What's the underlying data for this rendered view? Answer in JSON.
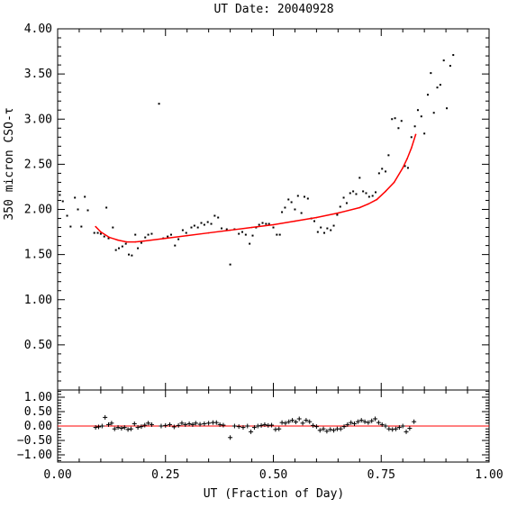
{
  "chart_data": [
    {
      "type": "scatter",
      "title": "UT Date: 20040928",
      "xlabel": "",
      "ylabel": "350 micron CSO-τ",
      "xlim": [
        0,
        1
      ],
      "ylim": [
        0,
        4
      ],
      "x_ticks": [
        "0.00",
        "0.25",
        "0.50",
        "0.75",
        "1.00"
      ],
      "y_ticks": [
        "0.50",
        "1.00",
        "1.50",
        "2.00",
        "2.50",
        "3.00",
        "3.50",
        "4.00"
      ],
      "series": [
        {
          "marker": "dot",
          "color": "#000000",
          "points": [
            [
              0.005,
              2.16
            ],
            [
              0.012,
              2.09
            ],
            [
              0.022,
              1.93
            ],
            [
              0.03,
              1.81
            ],
            [
              0.04,
              2.13
            ],
            [
              0.047,
              2.0
            ],
            [
              0.055,
              1.81
            ],
            [
              0.063,
              2.14
            ],
            [
              0.07,
              1.99
            ],
            [
              0.085,
              1.74
            ],
            [
              0.093,
              1.74
            ],
            [
              0.1,
              1.73
            ],
            [
              0.108,
              1.7
            ],
            [
              0.113,
              2.02
            ],
            [
              0.118,
              1.68
            ],
            [
              0.128,
              1.8
            ],
            [
              0.135,
              1.55
            ],
            [
              0.142,
              1.57
            ],
            [
              0.15,
              1.59
            ],
            [
              0.158,
              1.62
            ],
            [
              0.165,
              1.5
            ],
            [
              0.172,
              1.49
            ],
            [
              0.18,
              1.72
            ],
            [
              0.186,
              1.57
            ],
            [
              0.194,
              1.63
            ],
            [
              0.203,
              1.69
            ],
            [
              0.21,
              1.72
            ],
            [
              0.218,
              1.73
            ],
            [
              0.235,
              3.17
            ],
            [
              0.245,
              1.68
            ],
            [
              0.255,
              1.7
            ],
            [
              0.263,
              1.72
            ],
            [
              0.272,
              1.6
            ],
            [
              0.28,
              1.67
            ],
            [
              0.29,
              1.77
            ],
            [
              0.298,
              1.74
            ],
            [
              0.31,
              1.8
            ],
            [
              0.317,
              1.82
            ],
            [
              0.325,
              1.8
            ],
            [
              0.333,
              1.85
            ],
            [
              0.34,
              1.83
            ],
            [
              0.348,
              1.86
            ],
            [
              0.356,
              1.84
            ],
            [
              0.364,
              1.93
            ],
            [
              0.372,
              1.91
            ],
            [
              0.38,
              1.79
            ],
            [
              0.392,
              1.78
            ],
            [
              0.4,
              1.39
            ],
            [
              0.41,
              1.78
            ],
            [
              0.42,
              1.73
            ],
            [
              0.428,
              1.75
            ],
            [
              0.436,
              1.72
            ],
            [
              0.445,
              1.62
            ],
            [
              0.452,
              1.71
            ],
            [
              0.46,
              1.8
            ],
            [
              0.467,
              1.83
            ],
            [
              0.475,
              1.85
            ],
            [
              0.483,
              1.84
            ],
            [
              0.49,
              1.84
            ],
            [
              0.5,
              1.8
            ],
            [
              0.508,
              1.72
            ],
            [
              0.515,
              1.72
            ],
            [
              0.52,
              1.97
            ],
            [
              0.527,
              2.02
            ],
            [
              0.535,
              2.11
            ],
            [
              0.542,
              2.08
            ],
            [
              0.55,
              2.0
            ],
            [
              0.557,
              2.15
            ],
            [
              0.565,
              1.96
            ],
            [
              0.572,
              2.14
            ],
            [
              0.58,
              2.12
            ],
            [
              0.588,
              1.9
            ],
            [
              0.595,
              1.87
            ],
            [
              0.603,
              1.75
            ],
            [
              0.61,
              1.8
            ],
            [
              0.618,
              1.74
            ],
            [
              0.625,
              1.79
            ],
            [
              0.633,
              1.77
            ],
            [
              0.64,
              1.82
            ],
            [
              0.648,
              1.94
            ],
            [
              0.655,
              2.03
            ],
            [
              0.663,
              2.13
            ],
            [
              0.67,
              2.07
            ],
            [
              0.678,
              2.18
            ],
            [
              0.685,
              2.2
            ],
            [
              0.692,
              2.17
            ],
            [
              0.7,
              2.35
            ],
            [
              0.708,
              2.2
            ],
            [
              0.715,
              2.18
            ],
            [
              0.722,
              2.14
            ],
            [
              0.73,
              2.15
            ],
            [
              0.737,
              2.19
            ],
            [
              0.745,
              2.4
            ],
            [
              0.752,
              2.45
            ],
            [
              0.76,
              2.42
            ],
            [
              0.767,
              2.6
            ],
            [
              0.775,
              3.0
            ],
            [
              0.782,
              3.01
            ],
            [
              0.79,
              2.9
            ],
            [
              0.797,
              2.98
            ],
            [
              0.805,
              2.48
            ],
            [
              0.812,
              2.46
            ],
            [
              0.82,
              2.8
            ],
            [
              0.828,
              2.92
            ],
            [
              0.835,
              3.1
            ],
            [
              0.843,
              3.03
            ],
            [
              0.85,
              2.84
            ],
            [
              0.858,
              3.27
            ],
            [
              0.865,
              3.51
            ],
            [
              0.872,
              3.07
            ],
            [
              0.88,
              3.35
            ],
            [
              0.887,
              3.38
            ],
            [
              0.895,
              3.65
            ],
            [
              0.902,
              3.12
            ],
            [
              0.91,
              3.59
            ],
            [
              0.917,
              3.71
            ]
          ]
        },
        {
          "marker": "line",
          "color": "#ff0000",
          "x": [
            0.088,
            0.1,
            0.12,
            0.14,
            0.16,
            0.18,
            0.2,
            0.25,
            0.3,
            0.35,
            0.4,
            0.45,
            0.5,
            0.55,
            0.6,
            0.65,
            0.7,
            0.72,
            0.74,
            0.76,
            0.78,
            0.8,
            0.81,
            0.82,
            0.83
          ],
          "y": [
            1.81,
            1.75,
            1.69,
            1.66,
            1.64,
            1.64,
            1.65,
            1.68,
            1.71,
            1.74,
            1.77,
            1.8,
            1.83,
            1.87,
            1.91,
            1.96,
            2.02,
            2.06,
            2.11,
            2.2,
            2.3,
            2.46,
            2.56,
            2.68,
            2.83
          ]
        }
      ]
    },
    {
      "type": "scatter",
      "xlabel": "UT (Fraction of Day)",
      "ylabel": "",
      "xlim": [
        0,
        1
      ],
      "ylim": [
        -1.25,
        1.25
      ],
      "x_ticks": [
        "0.00",
        "0.25",
        "0.50",
        "0.75",
        "1.00"
      ],
      "y_ticks": [
        "1.00",
        "0.50",
        "0.00",
        "−0.50",
        "−1.00"
      ],
      "zero_line_color": "#ff0000",
      "series": [
        {
          "marker": "plus",
          "color": "#000000",
          "points": [
            [
              0.088,
              -0.05
            ],
            [
              0.095,
              -0.03
            ],
            [
              0.103,
              0.0
            ],
            [
              0.11,
              0.3
            ],
            [
              0.118,
              0.05
            ],
            [
              0.125,
              0.1
            ],
            [
              0.132,
              -0.1
            ],
            [
              0.14,
              -0.05
            ],
            [
              0.148,
              -0.08
            ],
            [
              0.155,
              -0.05
            ],
            [
              0.163,
              -0.12
            ],
            [
              0.17,
              -0.1
            ],
            [
              0.178,
              0.08
            ],
            [
              0.186,
              -0.05
            ],
            [
              0.194,
              -0.02
            ],
            [
              0.202,
              0.03
            ],
            [
              0.21,
              0.1
            ],
            [
              0.218,
              0.05
            ],
            [
              0.24,
              0.0
            ],
            [
              0.25,
              0.02
            ],
            [
              0.26,
              0.05
            ],
            [
              0.27,
              -0.03
            ],
            [
              0.28,
              0.02
            ],
            [
              0.288,
              0.1
            ],
            [
              0.296,
              0.05
            ],
            [
              0.305,
              0.08
            ],
            [
              0.313,
              0.05
            ],
            [
              0.32,
              0.1
            ],
            [
              0.33,
              0.06
            ],
            [
              0.34,
              0.08
            ],
            [
              0.35,
              0.1
            ],
            [
              0.36,
              0.12
            ],
            [
              0.368,
              0.12
            ],
            [
              0.376,
              0.05
            ],
            [
              0.384,
              0.03
            ],
            [
              0.4,
              -0.4
            ],
            [
              0.41,
              0.0
            ],
            [
              0.42,
              -0.02
            ],
            [
              0.43,
              -0.05
            ],
            [
              0.44,
              0.0
            ],
            [
              0.448,
              -0.2
            ],
            [
              0.456,
              -0.05
            ],
            [
              0.464,
              0.0
            ],
            [
              0.472,
              0.02
            ],
            [
              0.48,
              0.05
            ],
            [
              0.488,
              0.02
            ],
            [
              0.496,
              0.03
            ],
            [
              0.505,
              -0.12
            ],
            [
              0.513,
              -0.1
            ],
            [
              0.52,
              0.12
            ],
            [
              0.528,
              0.1
            ],
            [
              0.536,
              0.15
            ],
            [
              0.544,
              0.2
            ],
            [
              0.552,
              0.14
            ],
            [
              0.56,
              0.25
            ],
            [
              0.568,
              0.1
            ],
            [
              0.576,
              0.2
            ],
            [
              0.584,
              0.15
            ],
            [
              0.592,
              0.02
            ],
            [
              0.6,
              -0.02
            ],
            [
              0.608,
              -0.15
            ],
            [
              0.616,
              -0.1
            ],
            [
              0.624,
              -0.18
            ],
            [
              0.632,
              -0.12
            ],
            [
              0.64,
              -0.15
            ],
            [
              0.648,
              -0.1
            ],
            [
              0.656,
              -0.1
            ],
            [
              0.664,
              -0.02
            ],
            [
              0.672,
              0.05
            ],
            [
              0.68,
              0.12
            ],
            [
              0.688,
              0.08
            ],
            [
              0.696,
              0.15
            ],
            [
              0.704,
              0.2
            ],
            [
              0.712,
              0.15
            ],
            [
              0.72,
              0.12
            ],
            [
              0.728,
              0.18
            ],
            [
              0.736,
              0.25
            ],
            [
              0.744,
              0.12
            ],
            [
              0.752,
              0.05
            ],
            [
              0.76,
              0.0
            ],
            [
              0.768,
              -0.1
            ],
            [
              0.776,
              -0.12
            ],
            [
              0.784,
              -0.1
            ],
            [
              0.792,
              -0.05
            ],
            [
              0.8,
              0.0
            ],
            [
              0.808,
              -0.2
            ],
            [
              0.816,
              -0.08
            ],
            [
              0.826,
              0.15
            ]
          ]
        }
      ]
    }
  ]
}
